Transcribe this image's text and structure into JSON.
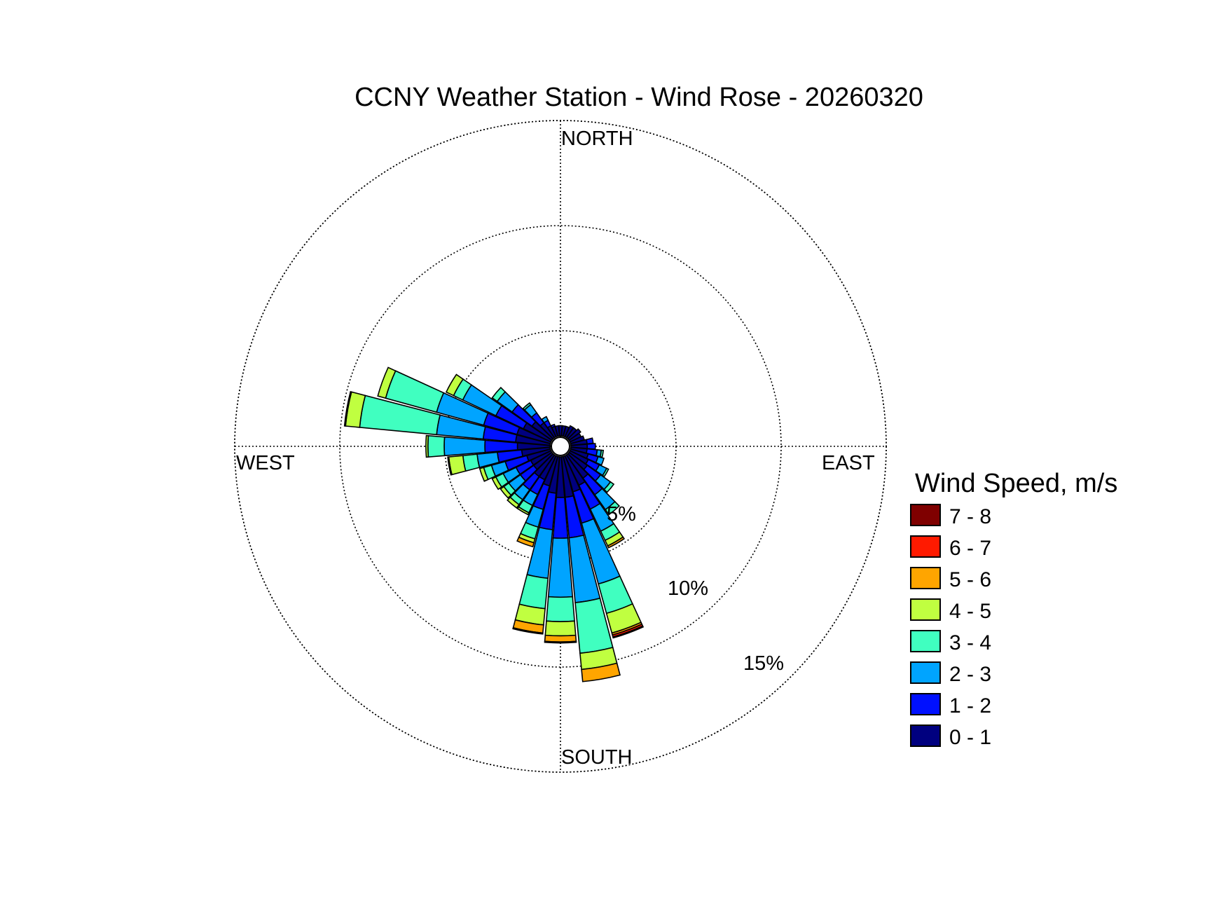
{
  "chart_data": {
    "type": "windrose",
    "title": "CCNY Weather Station - Wind Rose - 20260320",
    "direction_labels": {
      "north": "NORTH",
      "east": "EAST",
      "south": "SOUTH",
      "west": "WEST"
    },
    "ring_labels": [
      "5%",
      "10%",
      "15%"
    ],
    "rings": [
      5,
      10,
      15
    ],
    "rmax": 15.5,
    "legend_title": "Wind Speed, m/s",
    "bins": [
      {
        "label": "0 - 1",
        "color": "#00007f"
      },
      {
        "label": "1 - 2",
        "color": "#0010ff"
      },
      {
        "label": "2 - 3",
        "color": "#00a4ff"
      },
      {
        "label": "3 - 4",
        "color": "#40ffc0"
      },
      {
        "label": "4 - 5",
        "color": "#c0ff40"
      },
      {
        "label": "5 - 6",
        "color": "#ffa500"
      },
      {
        "label": "6 - 7",
        "color": "#ff1a00"
      },
      {
        "label": "7 - 8",
        "color": "#7f0000"
      }
    ],
    "direction_unit": "degrees (0 = North, clockwise)",
    "sectors": [
      {
        "dir": 0,
        "values": [
          0.5,
          0,
          0,
          0,
          0,
          0,
          0,
          0
        ]
      },
      {
        "dir": 10,
        "values": [
          0.5,
          0,
          0,
          0,
          0,
          0,
          0,
          0
        ]
      },
      {
        "dir": 20,
        "values": [
          0.5,
          0,
          0,
          0,
          0,
          0,
          0,
          0
        ]
      },
      {
        "dir": 30,
        "values": [
          0.6,
          0,
          0,
          0,
          0,
          0,
          0,
          0
        ]
      },
      {
        "dir": 40,
        "values": [
          0.6,
          0,
          0,
          0,
          0,
          0,
          0,
          0
        ]
      },
      {
        "dir": 50,
        "values": [
          0.7,
          0,
          0,
          0,
          0,
          0,
          0,
          0
        ]
      },
      {
        "dir": 60,
        "values": [
          0.6,
          0,
          0,
          0,
          0,
          0,
          0,
          0
        ]
      },
      {
        "dir": 70,
        "values": [
          0.7,
          0,
          0,
          0,
          0,
          0,
          0,
          0
        ]
      },
      {
        "dir": 80,
        "values": [
          0.8,
          0.3,
          0,
          0,
          0,
          0,
          0,
          0
        ]
      },
      {
        "dir": 90,
        "values": [
          0.8,
          0.4,
          0,
          0,
          0,
          0,
          0,
          0
        ]
      },
      {
        "dir": 100,
        "values": [
          0.8,
          0.5,
          0.2,
          0.1,
          0,
          0,
          0,
          0
        ]
      },
      {
        "dir": 110,
        "values": [
          0.9,
          0.5,
          0.3,
          0,
          0,
          0,
          0,
          0
        ]
      },
      {
        "dir": 120,
        "values": [
          1.0,
          0.6,
          0.4,
          0.1,
          0,
          0,
          0,
          0
        ]
      },
      {
        "dir": 130,
        "values": [
          1.1,
          0.8,
          0.6,
          0.2,
          0,
          0,
          0,
          0
        ]
      },
      {
        "dir": 140,
        "values": [
          1.4,
          1.0,
          0.9,
          0.3,
          0,
          0,
          0,
          0
        ]
      },
      {
        "dir": 150,
        "values": [
          1.6,
          1.3,
          1.2,
          0.5,
          0.3,
          0.1,
          0,
          0
        ]
      },
      {
        "dir": 160,
        "values": [
          1.8,
          1.6,
          3.1,
          1.5,
          1.0,
          0.1,
          0.1,
          0.05
        ]
      },
      {
        "dir": 170,
        "values": [
          2.0,
          2.0,
          3.2,
          2.5,
          0.8,
          0.6,
          0,
          0
        ]
      },
      {
        "dir": 180,
        "values": [
          2.0,
          2.0,
          2.9,
          1.2,
          0.7,
          0.3,
          0,
          0.05
        ]
      },
      {
        "dir": 190,
        "values": [
          1.8,
          1.8,
          2.4,
          1.5,
          0.8,
          0.4,
          0,
          0.05
        ]
      },
      {
        "dir": 200,
        "values": [
          1.5,
          1.2,
          0.9,
          0.6,
          0.2,
          0.2,
          0,
          0
        ]
      },
      {
        "dir": 210,
        "values": [
          1.3,
          0.8,
          0.6,
          0.4,
          0.1,
          0,
          0,
          0
        ]
      },
      {
        "dir": 220,
        "values": [
          1.3,
          0.8,
          0.6,
          0.3,
          0.2,
          0,
          0,
          0
        ]
      },
      {
        "dir": 230,
        "values": [
          1.1,
          0.8,
          0.7,
          0.3,
          0.2,
          0,
          0,
          0
        ]
      },
      {
        "dir": 240,
        "values": [
          1.1,
          0.8,
          0.7,
          0.4,
          0.2,
          0,
          0,
          0
        ]
      },
      {
        "dir": 250,
        "values": [
          1.2,
          1.1,
          0.7,
          0.4,
          0.2,
          0,
          0,
          0
        ]
      },
      {
        "dir": 260,
        "values": [
          1.4,
          1.2,
          1.0,
          0.7,
          0.7,
          0,
          0,
          0.05
        ]
      },
      {
        "dir": 270,
        "values": [
          1.6,
          1.6,
          2.0,
          0.8,
          0.1,
          0,
          0,
          0
        ]
      },
      {
        "dir": 280,
        "values": [
          1.7,
          1.6,
          2.3,
          3.8,
          0.7,
          0,
          0,
          0.05
        ]
      },
      {
        "dir": 290,
        "values": [
          1.7,
          1.7,
          2.4,
          2.6,
          0.4,
          0,
          0,
          0
        ]
      },
      {
        "dir": 300,
        "values": [
          1.5,
          1.5,
          1.8,
          0.5,
          0.4,
          0,
          0,
          0
        ]
      },
      {
        "dir": 310,
        "values": [
          1.2,
          1.2,
          0.9,
          0.3,
          0,
          0,
          0,
          0
        ]
      },
      {
        "dir": 320,
        "values": [
          0.9,
          0.6,
          0.5,
          0.1,
          0,
          0,
          0,
          0
        ]
      },
      {
        "dir": 330,
        "values": [
          0.6,
          0.3,
          0.2,
          0,
          0,
          0,
          0,
          0
        ]
      },
      {
        "dir": 340,
        "values": [
          0.5,
          0.1,
          0,
          0,
          0,
          0,
          0,
          0
        ]
      },
      {
        "dir": 350,
        "values": [
          0.5,
          0,
          0,
          0,
          0,
          0,
          0,
          0
        ]
      }
    ]
  }
}
